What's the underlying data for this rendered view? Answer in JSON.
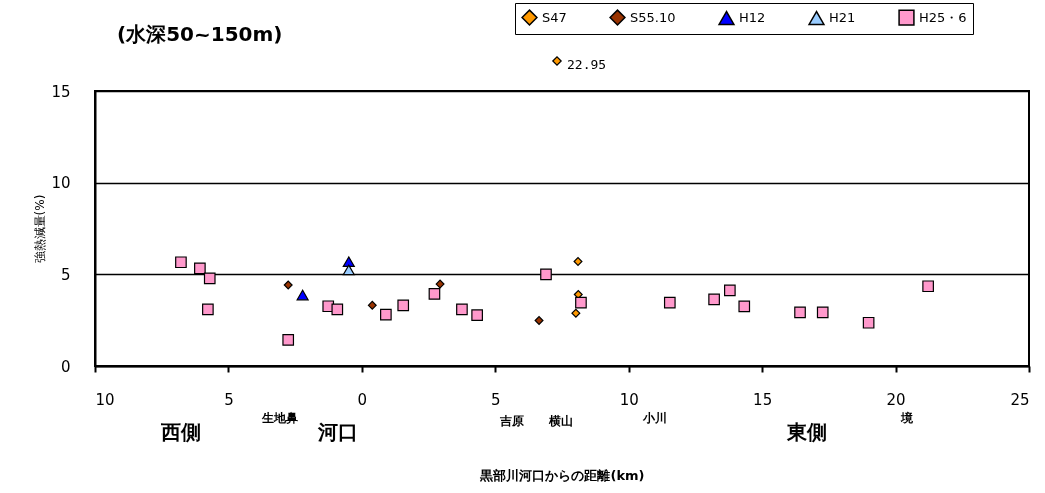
{
  "chart_data": {
    "type": "scatter",
    "title": "(水深50~150m)",
    "xlabel": "黒部川河口からの距離(km)",
    "ylabel": "強熱減量(%)",
    "xlim": [
      -10,
      25
    ],
    "xticks": [
      {
        "value": -10,
        "label": "10"
      },
      {
        "value": -5,
        "label": "5"
      },
      0,
      5,
      10,
      15,
      20,
      25
    ],
    "ylim": [
      0,
      15
    ],
    "yticks": [
      0,
      5,
      10,
      15
    ],
    "grid": "y",
    "legend": "top right",
    "series": [
      {
        "name": "S47",
        "color": "#ff9900",
        "marker": "diamond",
        "x": [
          8.1,
          8.11,
          8.02
        ],
        "values": [
          5.7,
          3.9,
          2.88
        ]
      },
      {
        "name": "S55.10",
        "color": "#993300",
        "marker": "diamond",
        "x": [
          -2.76,
          0.39,
          2.93,
          6.64
        ],
        "values": [
          4.42,
          3.31,
          4.47,
          2.48
        ]
      },
      {
        "name": "H12",
        "color": "#0000ff",
        "marker": "triangle",
        "x": [
          -2.22,
          -0.49
        ],
        "values": [
          3.87,
          5.69
        ]
      },
      {
        "name": "H21",
        "color": "#99ccff",
        "marker": "triangle",
        "x": [
          -0.49
        ],
        "values": [
          5.24
        ]
      },
      {
        "name": "H25・6",
        "color": "#ff99cc",
        "marker": "square",
        "x": [
          -6.78,
          -6.07,
          -5.7,
          -5.77,
          -2.76,
          -1.26,
          -0.92,
          0.9,
          1.55,
          2.72,
          3.75,
          4.32,
          6.9,
          8.21,
          11.54,
          13.2,
          13.79,
          14.33,
          16.42,
          17.27,
          18.99,
          21.22
        ],
        "values": [
          5.66,
          5.33,
          4.78,
          3.09,
          1.42,
          3.26,
          3.09,
          2.8,
          3.31,
          3.93,
          3.09,
          2.77,
          5.0,
          3.46,
          3.46,
          3.63,
          4.12,
          3.25,
          2.93,
          2.93,
          2.36,
          4.35
        ]
      }
    ],
    "annotations": [
      "22.95",
      "西側",
      "生地鼻",
      "河口",
      "吉原",
      "横山",
      "小川",
      "東側",
      "境"
    ]
  }
}
